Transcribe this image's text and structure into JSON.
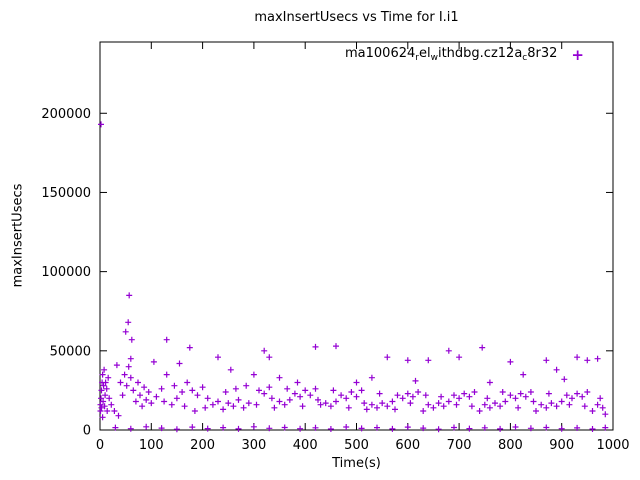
{
  "chart_data": {
    "type": "scatter",
    "title": "maxInsertUsecs vs Time for I.i1",
    "xlabel": "Time(s)",
    "ylabel": "maxInsertUsecs",
    "xlim": [
      0,
      1000
    ],
    "ylim": [
      0,
      245000
    ],
    "xticks": [
      0,
      100,
      200,
      300,
      400,
      500,
      600,
      700,
      800,
      900,
      1000
    ],
    "yticks": [
      0,
      50000,
      100000,
      150000,
      200000
    ],
    "grid": false,
    "legend_position": "top-right-inside",
    "marker": {
      "shape": "plus",
      "color": "#9400d3"
    },
    "legend": {
      "segments": [
        {
          "t": "ma100624"
        },
        {
          "t": "r",
          "sub": true
        },
        {
          "t": "el"
        },
        {
          "t": "w",
          "sub": true
        },
        {
          "t": "ithdbg.cz12a"
        },
        {
          "t": "c",
          "sub": true
        },
        {
          "t": "8r32"
        }
      ]
    },
    "series": [
      {
        "name": "ma100624 rel withdbg.cz12a c8r32",
        "points": [
          [
            1,
            12000
          ],
          [
            1,
            16000
          ],
          [
            2,
            193000
          ],
          [
            2,
            20000
          ],
          [
            3,
            14000
          ],
          [
            3,
            25000
          ],
          [
            4,
            30000
          ],
          [
            5,
            35000
          ],
          [
            5,
            8000
          ],
          [
            6,
            18000
          ],
          [
            7,
            28000
          ],
          [
            8,
            38000
          ],
          [
            9,
            15000
          ],
          [
            10,
            22000
          ],
          [
            11,
            30000
          ],
          [
            13,
            26000
          ],
          [
            14,
            12000
          ],
          [
            16,
            33000
          ],
          [
            18,
            20000
          ],
          [
            57,
            85000
          ],
          [
            55,
            68000
          ],
          [
            50,
            62000
          ],
          [
            62,
            57000
          ],
          [
            60,
            45000
          ],
          [
            130,
            57000
          ],
          [
            175,
            52000
          ],
          [
            230,
            46000
          ],
          [
            320,
            50000
          ],
          [
            330,
            46000
          ],
          [
            420,
            52500
          ],
          [
            460,
            53000
          ],
          [
            560,
            46000
          ],
          [
            600,
            44000
          ],
          [
            640,
            44000
          ],
          [
            680,
            50000
          ],
          [
            700,
            46000
          ],
          [
            745,
            52000
          ],
          [
            800,
            43000
          ],
          [
            870,
            44000
          ],
          [
            890,
            38000
          ],
          [
            930,
            46000
          ],
          [
            950,
            44000
          ],
          [
            970,
            45000
          ],
          [
            105,
            43000
          ],
          [
            255,
            38000
          ],
          [
            350,
            33000
          ],
          [
            385,
            30000
          ],
          [
            500,
            30000
          ],
          [
            530,
            33000
          ],
          [
            615,
            31000
          ],
          [
            760,
            30000
          ],
          [
            825,
            35000
          ],
          [
            905,
            32000
          ],
          [
            22,
            16000
          ],
          [
            28,
            12000
          ],
          [
            33,
            41000
          ],
          [
            36,
            9000
          ],
          [
            40,
            30000
          ],
          [
            44,
            22000
          ],
          [
            48,
            35000
          ],
          [
            52,
            28000
          ],
          [
            56,
            40000
          ],
          [
            60,
            33000
          ],
          [
            65,
            25000
          ],
          [
            70,
            18000
          ],
          [
            74,
            30000
          ],
          [
            78,
            22000
          ],
          [
            82,
            15000
          ],
          [
            86,
            27000
          ],
          [
            90,
            19000
          ],
          [
            95,
            24000
          ],
          [
            100,
            17000
          ],
          [
            110,
            21000
          ],
          [
            120,
            26000
          ],
          [
            130,
            35000
          ],
          [
            140,
            16000
          ],
          [
            150,
            20000
          ],
          [
            160,
            24000
          ],
          [
            170,
            30000
          ],
          [
            180,
            25000
          ],
          [
            190,
            22000
          ],
          [
            200,
            27000
          ],
          [
            210,
            20000
          ],
          [
            220,
            16000
          ],
          [
            230,
            18000
          ],
          [
            240,
            13000
          ],
          [
            250,
            17000
          ],
          [
            260,
            15000
          ],
          [
            270,
            19000
          ],
          [
            280,
            14000
          ],
          [
            290,
            17000
          ],
          [
            300,
            35000
          ],
          [
            310,
            25000
          ],
          [
            320,
            23000
          ],
          [
            330,
            27000
          ],
          [
            340,
            14000
          ],
          [
            350,
            18000
          ],
          [
            360,
            16000
          ],
          [
            370,
            19000
          ],
          [
            380,
            23000
          ],
          [
            390,
            21000
          ],
          [
            400,
            25000
          ],
          [
            410,
            22000
          ],
          [
            420,
            26000
          ],
          [
            430,
            16000
          ],
          [
            440,
            17000
          ],
          [
            450,
            15000
          ],
          [
            460,
            18000
          ],
          [
            470,
            22000
          ],
          [
            480,
            20000
          ],
          [
            490,
            24000
          ],
          [
            500,
            21000
          ],
          [
            510,
            25000
          ],
          [
            520,
            13000
          ],
          [
            530,
            16000
          ],
          [
            540,
            14000
          ],
          [
            550,
            17000
          ],
          [
            560,
            15000
          ],
          [
            570,
            18000
          ],
          [
            580,
            22000
          ],
          [
            590,
            20000
          ],
          [
            600,
            23000
          ],
          [
            610,
            21000
          ],
          [
            620,
            24000
          ],
          [
            630,
            12000
          ],
          [
            640,
            16000
          ],
          [
            650,
            14000
          ],
          [
            660,
            17000
          ],
          [
            670,
            15000
          ],
          [
            680,
            18000
          ],
          [
            690,
            22000
          ],
          [
            700,
            20000
          ],
          [
            710,
            23000
          ],
          [
            720,
            21000
          ],
          [
            730,
            24000
          ],
          [
            740,
            12000
          ],
          [
            750,
            16000
          ],
          [
            760,
            14000
          ],
          [
            770,
            17000
          ],
          [
            780,
            15000
          ],
          [
            790,
            18000
          ],
          [
            800,
            22000
          ],
          [
            810,
            20000
          ],
          [
            820,
            23000
          ],
          [
            830,
            21000
          ],
          [
            840,
            24000
          ],
          [
            850,
            12000
          ],
          [
            860,
            16000
          ],
          [
            870,
            14000
          ],
          [
            880,
            17000
          ],
          [
            890,
            15000
          ],
          [
            900,
            18000
          ],
          [
            910,
            22000
          ],
          [
            920,
            20000
          ],
          [
            930,
            23000
          ],
          [
            940,
            21000
          ],
          [
            950,
            24000
          ],
          [
            960,
            12000
          ],
          [
            970,
            16000
          ],
          [
            980,
            14000
          ],
          [
            985,
            10000
          ],
          [
            125,
            18000
          ],
          [
            145,
            28000
          ],
          [
            155,
            42000
          ],
          [
            165,
            15000
          ],
          [
            185,
            12000
          ],
          [
            205,
            14000
          ],
          [
            245,
            24000
          ],
          [
            265,
            26000
          ],
          [
            285,
            28000
          ],
          [
            305,
            16000
          ],
          [
            335,
            20000
          ],
          [
            365,
            26000
          ],
          [
            395,
            15000
          ],
          [
            425,
            19000
          ],
          [
            455,
            25000
          ],
          [
            485,
            14000
          ],
          [
            515,
            17000
          ],
          [
            545,
            23000
          ],
          [
            575,
            13000
          ],
          [
            605,
            17000
          ],
          [
            635,
            22000
          ],
          [
            665,
            21000
          ],
          [
            695,
            16000
          ],
          [
            725,
            15000
          ],
          [
            755,
            20000
          ],
          [
            785,
            24000
          ],
          [
            815,
            14000
          ],
          [
            845,
            18000
          ],
          [
            875,
            23000
          ],
          [
            915,
            16000
          ],
          [
            945,
            15000
          ],
          [
            975,
            20000
          ],
          [
            30,
            1500
          ],
          [
            60,
            800
          ],
          [
            90,
            2000
          ],
          [
            120,
            1200
          ],
          [
            150,
            500
          ],
          [
            180,
            1800
          ],
          [
            210,
            900
          ],
          [
            240,
            1500
          ],
          [
            270,
            700
          ],
          [
            300,
            2000
          ],
          [
            330,
            1100
          ],
          [
            360,
            1600
          ],
          [
            390,
            800
          ],
          [
            420,
            1400
          ],
          [
            450,
            600
          ],
          [
            480,
            1900
          ],
          [
            510,
            1000
          ],
          [
            540,
            1500
          ],
          [
            570,
            700
          ],
          [
            600,
            1800
          ],
          [
            630,
            1200
          ],
          [
            660,
            500
          ],
          [
            690,
            1600
          ],
          [
            720,
            900
          ],
          [
            750,
            1400
          ],
          [
            780,
            700
          ],
          [
            810,
            1900
          ],
          [
            840,
            1100
          ],
          [
            870,
            1600
          ],
          [
            900,
            800
          ],
          [
            930,
            1300
          ],
          [
            960,
            600
          ],
          [
            985,
            1500
          ]
        ]
      }
    ]
  }
}
